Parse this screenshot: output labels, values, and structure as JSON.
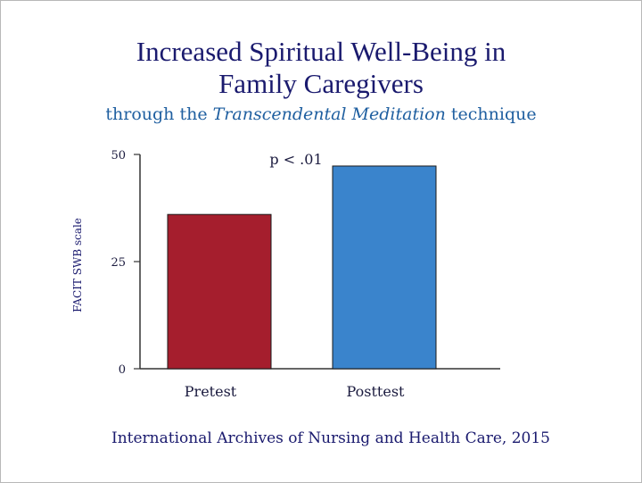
{
  "title_line1": "Increased Spiritual Well-Being in",
  "title_line2": "Family Caregivers",
  "subtitle_pre": "through the ",
  "subtitle_italic": "Transcendental Meditation",
  "subtitle_post": " technique",
  "citation": "International Archives of Nursing and Health Care, 2015",
  "chart_data": {
    "type": "bar",
    "categories": [
      "Pretest",
      "Posttest"
    ],
    "values": [
      36,
      47.3
    ],
    "colors": [
      "#a51e2d",
      "#3a84cc"
    ],
    "ylabel": "FACIT SWB scale",
    "xlabel": "",
    "ylim": [
      0,
      50
    ],
    "yticks": [
      "0",
      "25",
      "50"
    ],
    "yticks_values": [
      0,
      25,
      50
    ],
    "annotation": "p < .01",
    "grid": false
  }
}
